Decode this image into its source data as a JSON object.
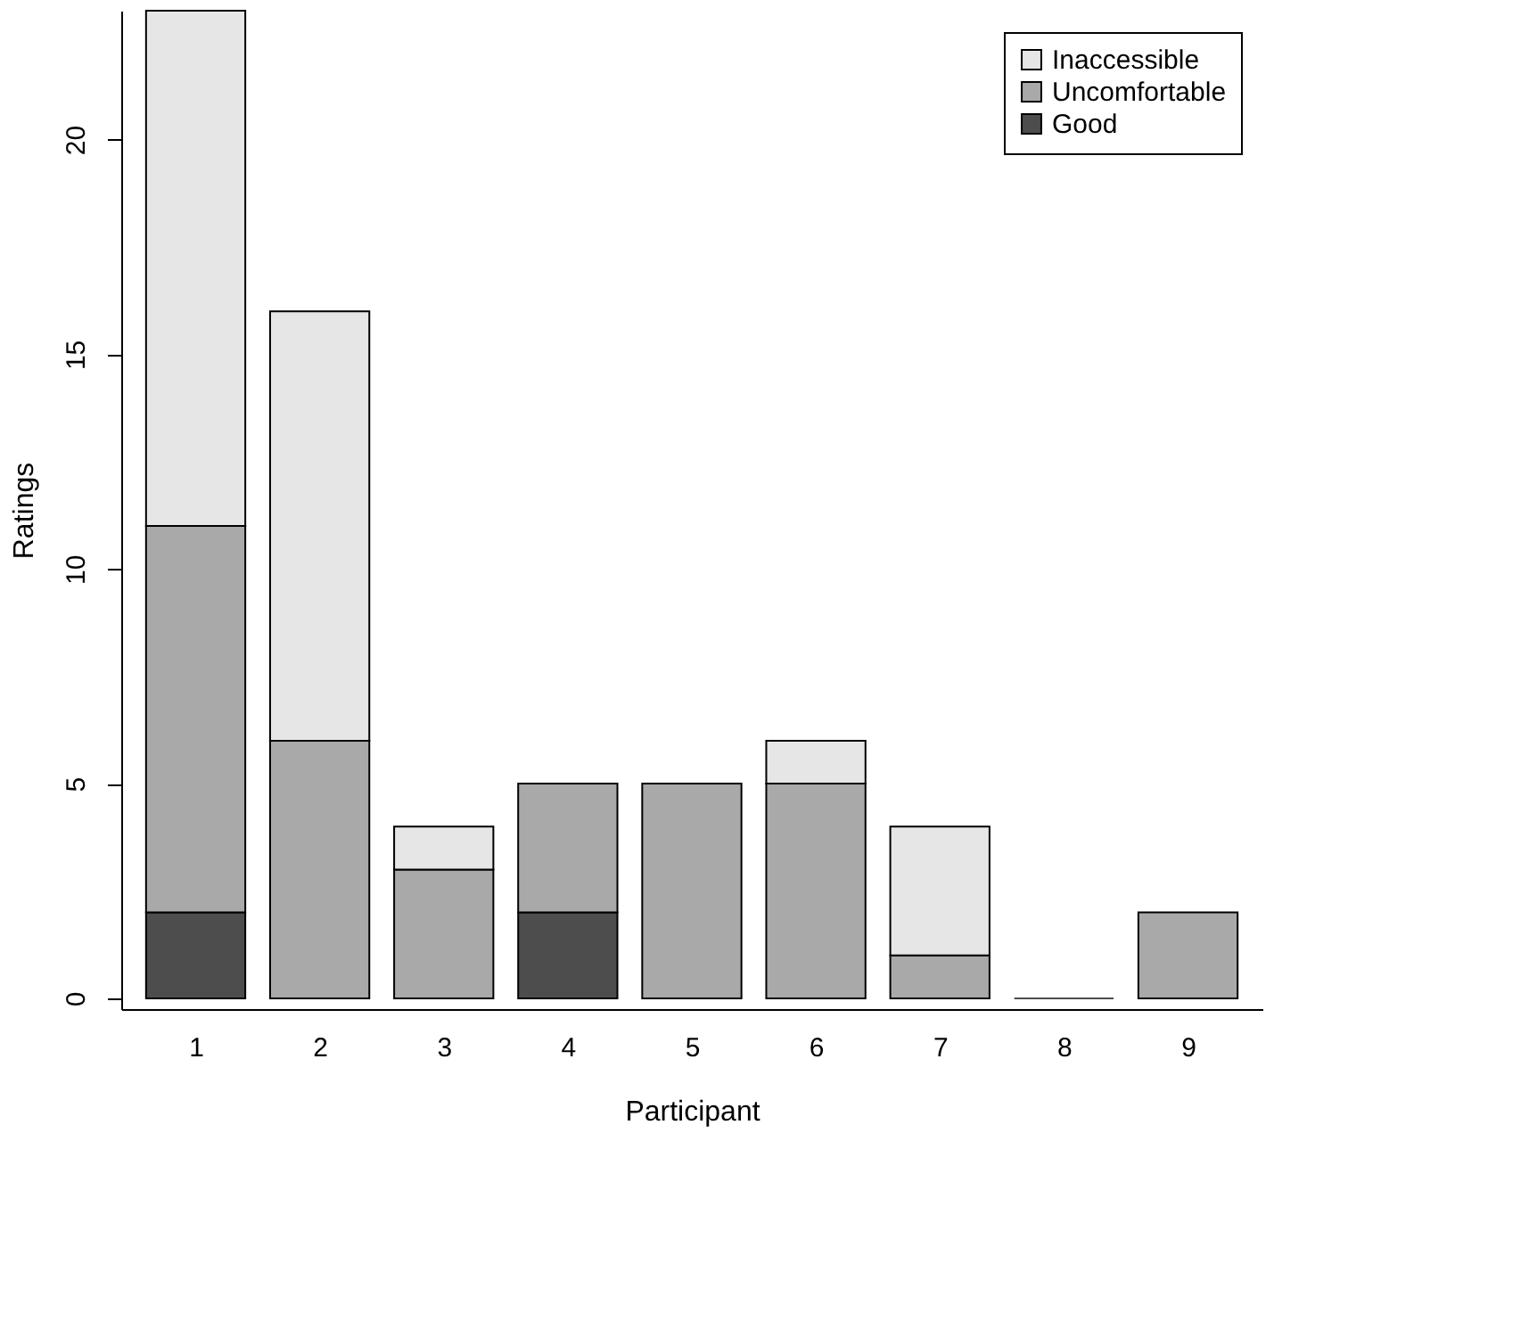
{
  "chart_data": {
    "type": "bar",
    "stacked": true,
    "xlabel": "Participant",
    "ylabel": "Ratings",
    "categories": [
      "1",
      "2",
      "3",
      "4",
      "5",
      "6",
      "7",
      "8",
      "9"
    ],
    "series": [
      {
        "name": "Good",
        "color": "#4d4d4d",
        "values": [
          2,
          0,
          0,
          2,
          0,
          0,
          0,
          0,
          0
        ]
      },
      {
        "name": "Uncomfortable",
        "color": "#a9a9a9",
        "values": [
          9,
          6,
          3,
          3,
          5,
          5,
          1,
          0,
          2
        ]
      },
      {
        "name": "Inaccessible",
        "color": "#e6e6e6",
        "values": [
          12,
          10,
          1,
          0,
          0,
          1,
          3,
          0,
          0
        ]
      }
    ],
    "ylim": [
      -0.25,
      23
    ],
    "yticks": [
      0,
      5,
      10,
      15,
      20
    ],
    "grid": false,
    "legend": "top right"
  }
}
